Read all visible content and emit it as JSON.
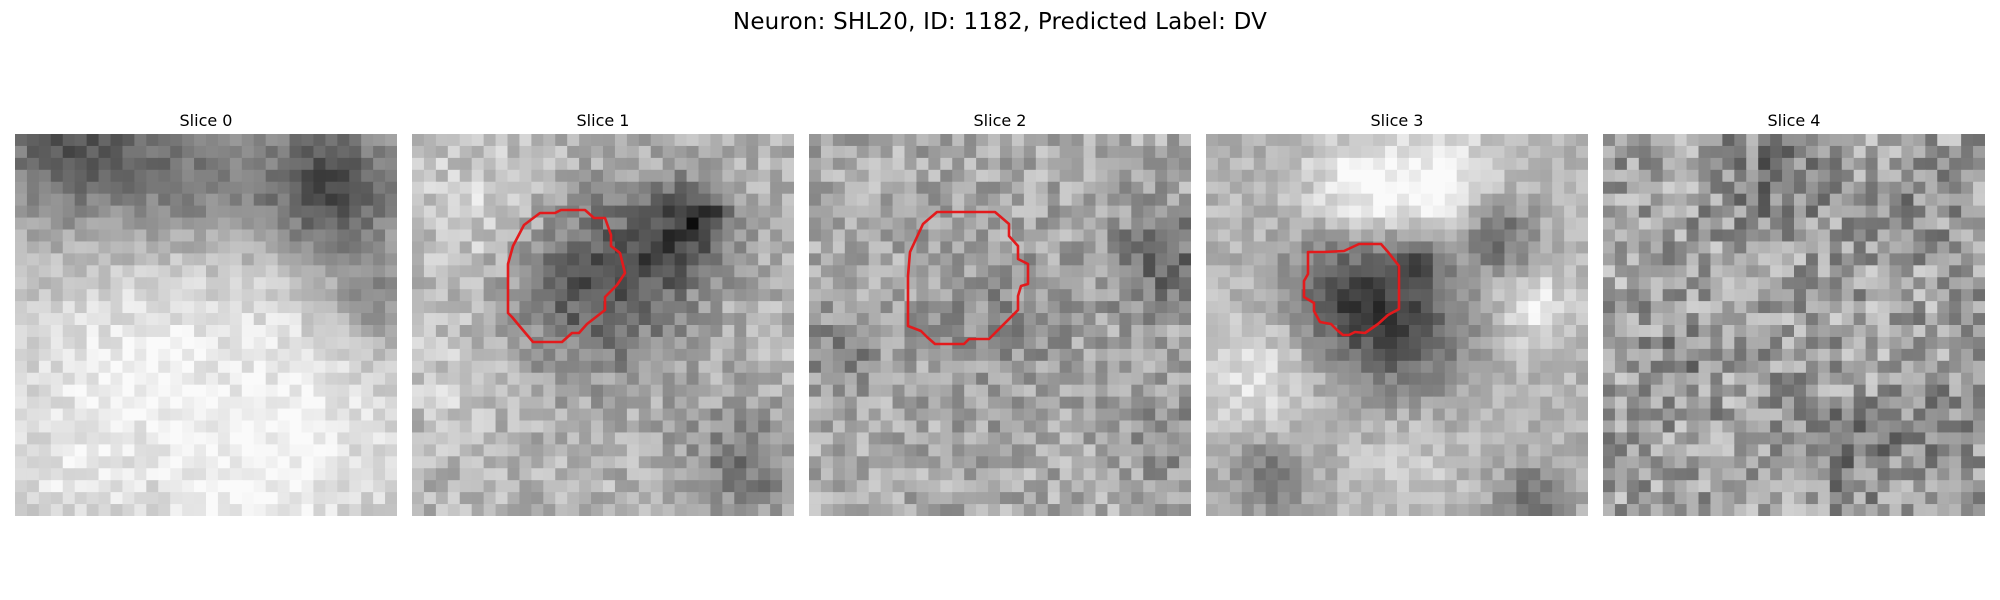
{
  "figure": {
    "title": "Neuron: SHL20, ID: 1182, Predicted Label: DV"
  },
  "contour_color": "#e31a1c",
  "panels": [
    {
      "title": "Slice 0",
      "seed": 11,
      "has_contour": false
    },
    {
      "title": "Slice 1",
      "seed": 23,
      "has_contour": true
    },
    {
      "title": "Slice 2",
      "seed": 37,
      "has_contour": true
    },
    {
      "title": "Slice 3",
      "seed": 53,
      "has_contour": true
    },
    {
      "title": "Slice 4",
      "seed": 71,
      "has_contour": false
    }
  ]
}
